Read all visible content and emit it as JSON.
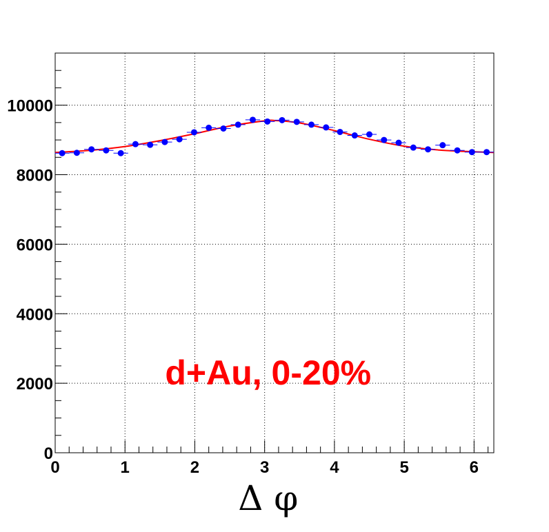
{
  "chart_data": {
    "type": "scatter",
    "title": "",
    "xlabel": "Δ φ",
    "ylabel": "",
    "xlim": [
      0,
      6.283
    ],
    "ylim": [
      0,
      11500
    ],
    "grid": true,
    "x_ticks": [
      "0",
      "1",
      "2",
      "3",
      "4",
      "5",
      "6"
    ],
    "y_ticks": [
      "0",
      "2000",
      "4000",
      "6000",
      "8000",
      "10000"
    ],
    "annotation": "d+Au, 0-20%",
    "colors": {
      "points": "#0000ff",
      "fit": "#ff0000",
      "annotation": "#ff0000"
    },
    "series": [
      {
        "x": [
          0.1,
          0.31,
          0.52,
          0.73,
          0.94,
          1.15,
          1.36,
          1.57,
          1.78,
          1.99,
          2.2,
          2.41,
          2.62,
          2.83,
          3.04,
          3.25,
          3.46,
          3.67,
          3.88,
          4.08,
          4.29,
          4.5,
          4.71,
          4.92,
          5.13,
          5.34,
          5.55,
          5.76,
          5.97,
          6.18
        ],
        "y": [
          8620,
          8630,
          8730,
          8700,
          8620,
          8880,
          8860,
          8940,
          9020,
          9220,
          9350,
          9330,
          9440,
          9580,
          9530,
          9570,
          9520,
          9440,
          9360,
          9230,
          9130,
          9160,
          9000,
          8920,
          8780,
          8730,
          8850,
          8700,
          8650,
          8650
        ]
      }
    ],
    "fit": {
      "x": [
        0,
        0.5,
        1,
        1.5,
        2,
        2.5,
        3,
        3.14,
        3.5,
        4,
        4.5,
        5,
        5.5,
        6,
        6.283
      ],
      "y": [
        8640,
        8700,
        8810,
        8980,
        9180,
        9400,
        9550,
        9560,
        9490,
        9270,
        9020,
        8820,
        8710,
        8660,
        8640
      ]
    }
  }
}
